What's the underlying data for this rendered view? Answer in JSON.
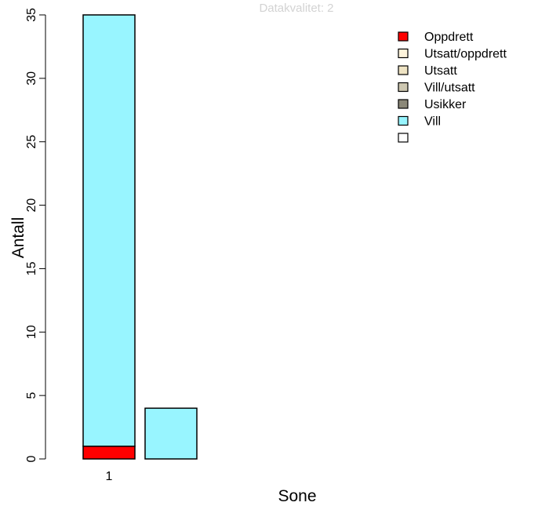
{
  "chart_data": {
    "type": "bar",
    "stacked": true,
    "title": "Datakvalitet: 2",
    "xlabel": "Sone",
    "ylabel": "Antall",
    "categories": [
      "1",
      ""
    ],
    "ylim": [
      0,
      35
    ],
    "yticks": [
      "0",
      "5",
      "10",
      "15",
      "20",
      "25",
      "30",
      "35"
    ],
    "grid": false,
    "legend_position": "top-right",
    "series": [
      {
        "name": "Oppdrett",
        "color": "#ff0000",
        "values": [
          1,
          0
        ]
      },
      {
        "name": "Utsatt/oppdrett",
        "color": "#fdf3dc",
        "values": [
          0,
          0
        ]
      },
      {
        "name": "Utsatt",
        "color": "#eee3c3",
        "values": [
          0,
          0
        ]
      },
      {
        "name": "Vill/utsatt",
        "color": "#cdc7b1",
        "values": [
          0,
          0
        ]
      },
      {
        "name": "Usikker",
        "color": "#8b8878",
        "values": [
          0,
          0
        ]
      },
      {
        "name": "Vill",
        "color": "#98f5ff",
        "values": [
          34,
          4
        ]
      },
      {
        "name": "",
        "color": "#ffffff",
        "values": [
          0,
          0
        ]
      }
    ]
  }
}
